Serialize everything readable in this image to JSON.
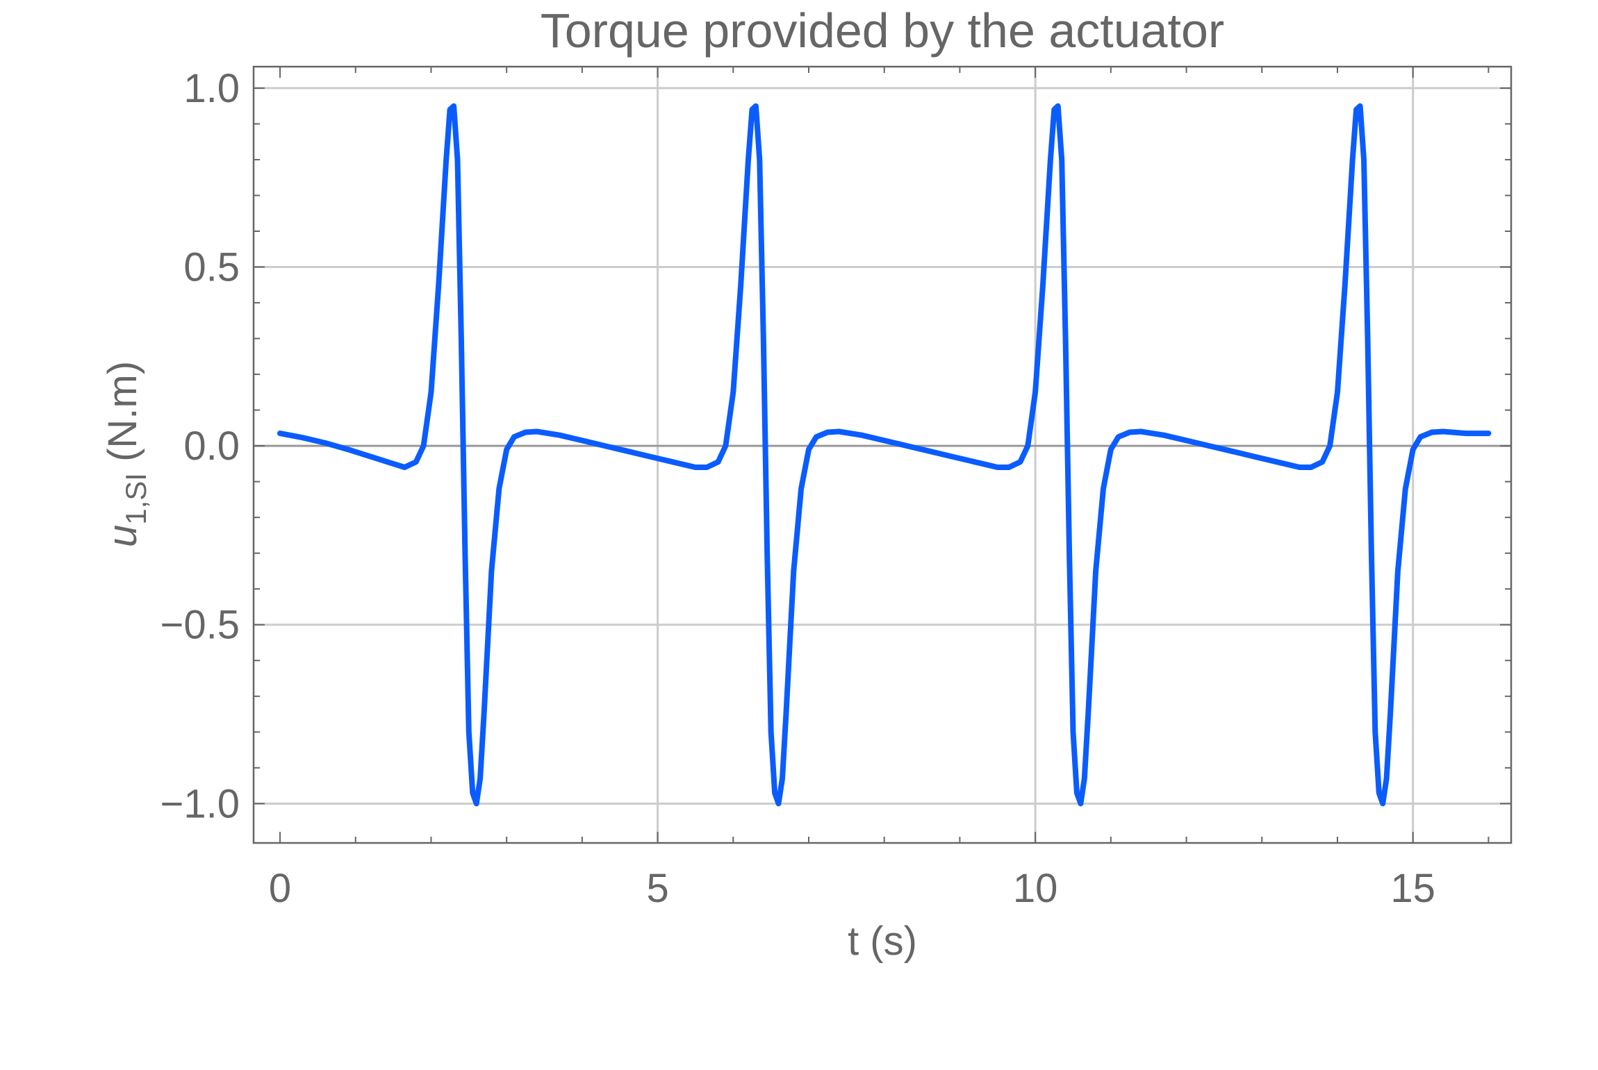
{
  "chart_data": {
    "type": "line",
    "title": "Torque provided by the actuator",
    "xlabel": "t (s)",
    "ylabel": {
      "symbol": "u",
      "subscript": "1,SI",
      "unit": " (N.m)"
    },
    "xlim": [
      -0.35,
      16.3
    ],
    "ylim": [
      -1.11,
      1.06
    ],
    "xticks": [
      0,
      5,
      10,
      15
    ],
    "xtick_labels": [
      "0",
      "5",
      "10",
      "15"
    ],
    "yticks": [
      1.0,
      0.5,
      0.0,
      -0.5,
      -1.0
    ],
    "ytick_labels": [
      "1.0",
      "0.5",
      "0.0",
      "−0.5",
      "−1.0"
    ],
    "grid": true,
    "legend": "none",
    "series": [
      {
        "color": "#0a5cff",
        "x": [
          0.0,
          0.3,
          0.6,
          0.9,
          1.2,
          1.5,
          1.65,
          1.8,
          1.9,
          2.0,
          2.1,
          2.2,
          2.25,
          2.3,
          2.35,
          2.4,
          2.45,
          2.5,
          2.55,
          2.6,
          2.65,
          2.7,
          2.75,
          2.8,
          2.9,
          3.0,
          3.1,
          3.25,
          3.4,
          3.7,
          4.0,
          4.3,
          4.6,
          4.9,
          5.2,
          5.5,
          5.65,
          5.8,
          5.9,
          6.0,
          6.1,
          6.2,
          6.25,
          6.3,
          6.35,
          6.4,
          6.45,
          6.5,
          6.55,
          6.6,
          6.65,
          6.7,
          6.75,
          6.8,
          6.9,
          7.0,
          7.1,
          7.25,
          7.4,
          7.7,
          8.0,
          8.3,
          8.6,
          8.9,
          9.2,
          9.5,
          9.65,
          9.8,
          9.9,
          10.0,
          10.1,
          10.2,
          10.25,
          10.3,
          10.35,
          10.4,
          10.45,
          10.5,
          10.55,
          10.6,
          10.65,
          10.7,
          10.75,
          10.8,
          10.9,
          11.0,
          11.1,
          11.25,
          11.4,
          11.7,
          12.0,
          12.3,
          12.6,
          12.9,
          13.2,
          13.5,
          13.65,
          13.8,
          13.9,
          14.0,
          14.1,
          14.2,
          14.25,
          14.3,
          14.35,
          14.4,
          14.45,
          14.5,
          14.55,
          14.6,
          14.65,
          14.7,
          14.75,
          14.8,
          14.9,
          15.0,
          15.1,
          15.25,
          15.4,
          15.7,
          16.0
        ],
        "y": [
          0.035,
          0.023,
          0.008,
          -0.01,
          -0.03,
          -0.05,
          -0.06,
          -0.045,
          0.0,
          0.15,
          0.45,
          0.8,
          0.94,
          0.95,
          0.8,
          0.3,
          -0.3,
          -0.8,
          -0.97,
          -1.0,
          -0.93,
          -0.75,
          -0.55,
          -0.35,
          -0.12,
          -0.01,
          0.025,
          0.038,
          0.04,
          0.03,
          0.015,
          0.0,
          -0.015,
          -0.03,
          -0.045,
          -0.06,
          -0.06,
          -0.045,
          0.0,
          0.15,
          0.45,
          0.8,
          0.94,
          0.95,
          0.8,
          0.3,
          -0.3,
          -0.8,
          -0.97,
          -1.0,
          -0.93,
          -0.75,
          -0.55,
          -0.35,
          -0.12,
          -0.01,
          0.025,
          0.038,
          0.04,
          0.03,
          0.015,
          0.0,
          -0.015,
          -0.03,
          -0.045,
          -0.06,
          -0.06,
          -0.045,
          0.0,
          0.15,
          0.45,
          0.8,
          0.94,
          0.95,
          0.8,
          0.3,
          -0.3,
          -0.8,
          -0.97,
          -1.0,
          -0.93,
          -0.75,
          -0.55,
          -0.35,
          -0.12,
          -0.01,
          0.025,
          0.038,
          0.04,
          0.03,
          0.015,
          0.0,
          -0.015,
          -0.03,
          -0.045,
          -0.06,
          -0.06,
          -0.045,
          0.0,
          0.15,
          0.45,
          0.8,
          0.94,
          0.95,
          0.8,
          0.3,
          -0.3,
          -0.8,
          -0.97,
          -1.0,
          -0.93,
          -0.75,
          -0.55,
          -0.35,
          -0.12,
          -0.01,
          0.025,
          0.038,
          0.04,
          0.035,
          0.035
        ]
      }
    ],
    "colors": {
      "frame": "#666666",
      "grid": "#cccccc",
      "zero_line": "#999999",
      "text": "#666666"
    }
  }
}
